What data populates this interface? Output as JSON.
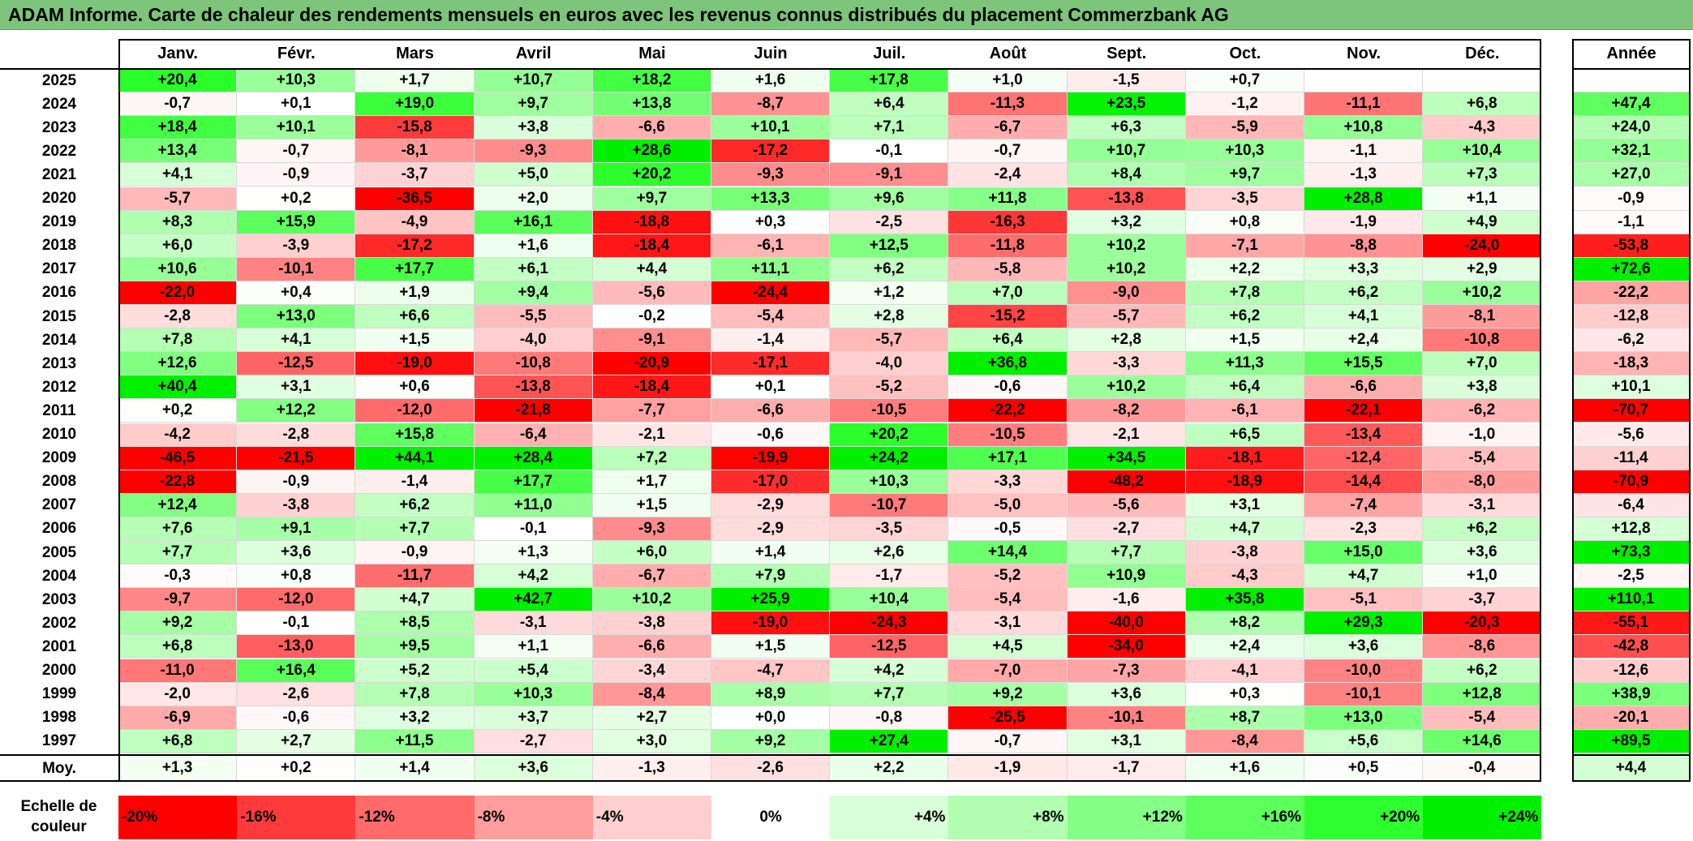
{
  "title": "ADAM Informe. Carte de chaleur des rendements mensuels en euros avec les revenus connus distribués du placement Commerzbank AG",
  "chart_data": {
    "type": "heatmap",
    "months": [
      "Janv.",
      "Févr.",
      "Mars",
      "Avril",
      "Mai",
      "Juin",
      "Juil.",
      "Août",
      "Sept.",
      "Oct.",
      "Nov.",
      "Déc."
    ],
    "year_header": "Année",
    "rows": [
      {
        "year": "2025",
        "values": [
          "+20,4",
          "+10,3",
          "+1,7",
          "+10,7",
          "+18,2",
          "+1,6",
          "+17,8",
          "+1,0",
          "-1,5",
          "+0,7",
          "",
          ""
        ],
        "annual": ""
      },
      {
        "year": "2024",
        "values": [
          "-0,7",
          "+0,1",
          "+19,0",
          "+9,7",
          "+13,8",
          "-8,7",
          "+6,4",
          "-11,3",
          "+23,5",
          "-1,2",
          "-11,1",
          "+6,8"
        ],
        "annual": "+47,4"
      },
      {
        "year": "2023",
        "values": [
          "+18,4",
          "+10,1",
          "-15,8",
          "+3,8",
          "-6,6",
          "+10,1",
          "+7,1",
          "-6,7",
          "+6,3",
          "-5,9",
          "+10,8",
          "-4,3"
        ],
        "annual": "+24,0"
      },
      {
        "year": "2022",
        "values": [
          "+13,4",
          "-0,7",
          "-8,1",
          "-9,3",
          "+28,6",
          "-17,2",
          "-0,1",
          "-0,7",
          "+10,7",
          "+10,3",
          "-1,1",
          "+10,4"
        ],
        "annual": "+32,1"
      },
      {
        "year": "2021",
        "values": [
          "+4,1",
          "-0,9",
          "-3,7",
          "+5,0",
          "+20,2",
          "-9,3",
          "-9,1",
          "-2,4",
          "+8,4",
          "+9,7",
          "-1,3",
          "+7,3"
        ],
        "annual": "+27,0"
      },
      {
        "year": "2020",
        "values": [
          "-5,7",
          "+0,2",
          "-36,5",
          "+2,0",
          "+9,7",
          "+13,3",
          "+9,6",
          "+11,8",
          "-13,8",
          "-3,5",
          "+28,8",
          "+1,1"
        ],
        "annual": "-0,9"
      },
      {
        "year": "2019",
        "values": [
          "+8,3",
          "+15,9",
          "-4,9",
          "+16,1",
          "-18,8",
          "+0,3",
          "-2,5",
          "-16,3",
          "+3,2",
          "+0,8",
          "-1,9",
          "+4,9"
        ],
        "annual": "-1,1"
      },
      {
        "year": "2018",
        "values": [
          "+6,0",
          "-3,9",
          "-17,2",
          "+1,6",
          "-18,4",
          "-6,1",
          "+12,5",
          "-11,8",
          "+10,2",
          "-7,1",
          "-8,8",
          "-24,0"
        ],
        "annual": "-53,8"
      },
      {
        "year": "2017",
        "values": [
          "+10,6",
          "-10,1",
          "+17,7",
          "+6,1",
          "+4,4",
          "+11,1",
          "+6,2",
          "-5,8",
          "+10,2",
          "+2,2",
          "+3,3",
          "+2,9"
        ],
        "annual": "+72,6"
      },
      {
        "year": "2016",
        "values": [
          "-22,0",
          "+0,4",
          "+1,9",
          "+9,4",
          "-5,6",
          "-24,4",
          "+1,2",
          "+7,0",
          "-9,0",
          "+7,8",
          "+6,2",
          "+10,2"
        ],
        "annual": "-22,2"
      },
      {
        "year": "2015",
        "values": [
          "-2,8",
          "+13,0",
          "+6,6",
          "-5,5",
          "-0,2",
          "-5,4",
          "+2,8",
          "-15,2",
          "-5,7",
          "+6,2",
          "+4,1",
          "-8,1"
        ],
        "annual": "-12,8"
      },
      {
        "year": "2014",
        "values": [
          "+7,8",
          "+4,1",
          "+1,5",
          "-4,0",
          "-9,1",
          "-1,4",
          "-5,7",
          "+6,4",
          "+2,8",
          "+1,5",
          "+2,4",
          "-10,8"
        ],
        "annual": "-6,2"
      },
      {
        "year": "2013",
        "values": [
          "+12,6",
          "-12,5",
          "-19,0",
          "-10,8",
          "-20,9",
          "-17,1",
          "-4,0",
          "+36,8",
          "-3,3",
          "+11,3",
          "+15,5",
          "+7,0"
        ],
        "annual": "-18,3"
      },
      {
        "year": "2012",
        "values": [
          "+40,4",
          "+3,1",
          "+0,6",
          "-13,8",
          "-18,4",
          "+0,1",
          "-5,2",
          "-0,6",
          "+10,2",
          "+6,4",
          "-6,6",
          "+3,8"
        ],
        "annual": "+10,1"
      },
      {
        "year": "2011",
        "values": [
          "+0,2",
          "+12,2",
          "-12,0",
          "-21,8",
          "-7,7",
          "-6,6",
          "-10,5",
          "-22,2",
          "-8,2",
          "-6,1",
          "-22,1",
          "-6,2"
        ],
        "annual": "-70,7"
      },
      {
        "year": "2010",
        "values": [
          "-4,2",
          "-2,8",
          "+15,8",
          "-6,4",
          "-2,1",
          "-0,6",
          "+20,2",
          "-10,5",
          "-2,1",
          "+6,5",
          "-13,4",
          "-1,0"
        ],
        "annual": "-5,6"
      },
      {
        "year": "2009",
        "values": [
          "-46,5",
          "-21,5",
          "+44,1",
          "+28,4",
          "+7,2",
          "-19,9",
          "+24,2",
          "+17,1",
          "+34,5",
          "-18,1",
          "-12,4",
          "-5,4"
        ],
        "annual": "-11,4"
      },
      {
        "year": "2008",
        "values": [
          "-22,8",
          "-0,9",
          "-1,4",
          "+17,7",
          "+1,7",
          "-17,0",
          "+10,3",
          "-3,3",
          "-48,2",
          "-18,9",
          "-14,4",
          "-8,0"
        ],
        "annual": "-70,9"
      },
      {
        "year": "2007",
        "values": [
          "+12,4",
          "-3,8",
          "+6,2",
          "+11,0",
          "+1,5",
          "-2,9",
          "-10,7",
          "-5,0",
          "-5,6",
          "+3,1",
          "-7,4",
          "-3,1"
        ],
        "annual": "-6,4"
      },
      {
        "year": "2006",
        "values": [
          "+7,6",
          "+9,1",
          "+7,7",
          "-0,1",
          "-9,3",
          "-2,9",
          "-3,5",
          "-0,5",
          "-2,7",
          "+4,7",
          "-2,3",
          "+6,2"
        ],
        "annual": "+12,8"
      },
      {
        "year": "2005",
        "values": [
          "+7,7",
          "+3,6",
          "-0,9",
          "+1,3",
          "+6,0",
          "+1,4",
          "+2,6",
          "+14,4",
          "+7,7",
          "-3,8",
          "+15,0",
          "+3,6"
        ],
        "annual": "+73,3"
      },
      {
        "year": "2004",
        "values": [
          "-0,3",
          "+0,8",
          "-11,7",
          "+4,2",
          "-6,7",
          "+7,9",
          "-1,7",
          "-5,2",
          "+10,9",
          "-4,3",
          "+4,7",
          "+1,0"
        ],
        "annual": "-2,5"
      },
      {
        "year": "2003",
        "values": [
          "-9,7",
          "-12,0",
          "+4,7",
          "+42,7",
          "+10,2",
          "+25,9",
          "+10,4",
          "-5,4",
          "-1,6",
          "+35,8",
          "-5,1",
          "-3,7"
        ],
        "annual": "+110,1"
      },
      {
        "year": "2002",
        "values": [
          "+9,2",
          "-0,1",
          "+8,5",
          "-3,1",
          "-3,8",
          "-19,0",
          "-24,3",
          "-3,1",
          "-40,0",
          "+8,2",
          "+29,3",
          "-20,3"
        ],
        "annual": "-55,1"
      },
      {
        "year": "2001",
        "values": [
          "+6,8",
          "-13,0",
          "+9,5",
          "+1,1",
          "-6,6",
          "+1,5",
          "-12,5",
          "+4,5",
          "-34,0",
          "+2,4",
          "+3,6",
          "-8,6"
        ],
        "annual": "-42,8"
      },
      {
        "year": "2000",
        "values": [
          "-11,0",
          "+16,4",
          "+5,2",
          "+5,4",
          "-3,4",
          "-4,7",
          "+4,2",
          "-7,0",
          "-7,3",
          "-4,1",
          "-10,0",
          "+6,2"
        ],
        "annual": "-12,6"
      },
      {
        "year": "1999",
        "values": [
          "-2,0",
          "-2,6",
          "+7,8",
          "+10,3",
          "-8,4",
          "+8,9",
          "+7,7",
          "+9,2",
          "+3,6",
          "+0,3",
          "-10,1",
          "+12,8"
        ],
        "annual": "+38,9"
      },
      {
        "year": "1998",
        "values": [
          "-6,9",
          "-0,6",
          "+3,2",
          "+3,7",
          "+2,7",
          "+0,0",
          "-0,8",
          "-25,5",
          "-10,1",
          "+8,7",
          "+13,0",
          "-5,4"
        ],
        "annual": "-20,1"
      },
      {
        "year": "1997",
        "values": [
          "+6,8",
          "+2,7",
          "+11,5",
          "-2,7",
          "+3,0",
          "+9,2",
          "+27,4",
          "-0,7",
          "+3,1",
          "-8,4",
          "+5,6",
          "+14,6"
        ],
        "annual": "+89,5"
      }
    ],
    "average": {
      "label": "Moy.",
      "values": [
        "+1,3",
        "+0,2",
        "+1,4",
        "+3,6",
        "-1,3",
        "-2,6",
        "+2,2",
        "-1,9",
        "-1,7",
        "+1,6",
        "+0,5",
        "-0,4"
      ],
      "annual": "+4,4"
    },
    "color_scale": {
      "label": "Echelle de couleur",
      "steps": [
        {
          "label": "-20%",
          "value": -20,
          "color": "#ff0000"
        },
        {
          "label": "-16%",
          "value": -16,
          "color": "#ff3a3a"
        },
        {
          "label": "-12%",
          "value": -12,
          "color": "#ff6a6a"
        },
        {
          "label": "-8%",
          "value": -8,
          "color": "#ff9c9c"
        },
        {
          "label": "-4%",
          "value": -4,
          "color": "#ffcfcf"
        },
        {
          "label": "0%",
          "value": 0,
          "color": "#ffffff"
        },
        {
          "label": "+4%",
          "value": 4,
          "color": "#d8ffd8"
        },
        {
          "label": "+8%",
          "value": 8,
          "color": "#b2ffb2"
        },
        {
          "label": "+12%",
          "value": 12,
          "color": "#86ff86"
        },
        {
          "label": "+16%",
          "value": 16,
          "color": "#5cff5c"
        },
        {
          "label": "+20%",
          "value": 20,
          "color": "#2eff2e"
        },
        {
          "label": "+24%",
          "value": 24,
          "color": "#00f000"
        }
      ]
    }
  }
}
